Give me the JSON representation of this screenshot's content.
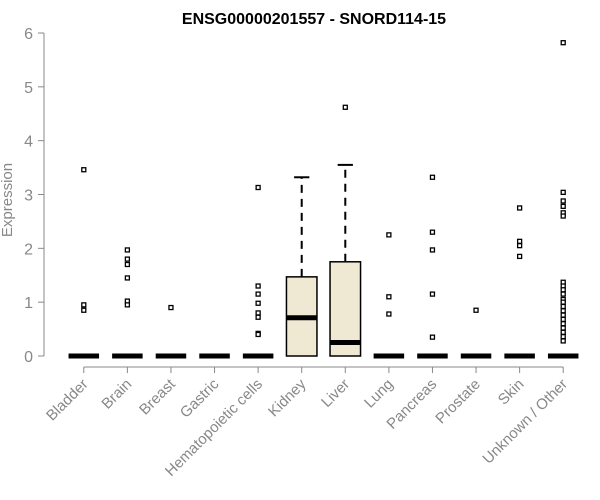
{
  "chart_data": {
    "type": "boxplot",
    "title": "ENSG00000201557 - SNORD114-15",
    "ylabel": "Expression",
    "xlabel": "",
    "ylim": [
      0,
      6
    ],
    "yticks": [
      0,
      1,
      2,
      3,
      4,
      5,
      6
    ],
    "grid": false,
    "colors": {
      "box_fill": "#efe8d2",
      "stroke": "#000000",
      "axis_text": "#888888"
    },
    "categories": [
      "Bladder",
      "Brain",
      "Breast",
      "Gastric",
      "Hematopoietic cells",
      "Kidney",
      "Liver",
      "Lung",
      "Pancreas",
      "Prostate",
      "Skin",
      "Unknown / Other"
    ],
    "boxes": [
      {
        "category": "Bladder",
        "q1": 0,
        "median": 0,
        "q3": 0,
        "whisker_low": 0,
        "whisker_high": 0,
        "outliers": [
          3.46,
          0.95,
          0.85
        ]
      },
      {
        "category": "Brain",
        "q1": 0,
        "median": 0,
        "q3": 0,
        "whisker_low": 0,
        "whisker_high": 0,
        "outliers": [
          1.97,
          1.8,
          1.7,
          1.45,
          1.02,
          0.95
        ]
      },
      {
        "category": "Breast",
        "q1": 0,
        "median": 0,
        "q3": 0,
        "whisker_low": 0,
        "whisker_high": 0,
        "outliers": [
          0.9
        ]
      },
      {
        "category": "Gastric",
        "q1": 0,
        "median": 0,
        "q3": 0,
        "whisker_low": 0,
        "whisker_high": 0,
        "outliers": []
      },
      {
        "category": "Hematopoietic cells",
        "q1": 0,
        "median": 0,
        "q3": 0,
        "whisker_low": 0,
        "whisker_high": 0,
        "outliers": [
          3.13,
          1.3,
          1.15,
          0.98,
          0.8,
          0.72,
          0.42,
          0.4
        ]
      },
      {
        "category": "Kidney",
        "q1": 0,
        "median": 0.71,
        "q3": 1.47,
        "whisker_low": 0,
        "whisker_high": 3.32,
        "outliers": []
      },
      {
        "category": "Liver",
        "q1": 0,
        "median": 0.25,
        "q3": 1.75,
        "whisker_low": 0,
        "whisker_high": 3.55,
        "outliers": [
          4.62
        ]
      },
      {
        "category": "Lung",
        "q1": 0,
        "median": 0,
        "q3": 0,
        "whisker_low": 0,
        "whisker_high": 0,
        "outliers": [
          2.25,
          1.1,
          0.78
        ]
      },
      {
        "category": "Pancreas",
        "q1": 0,
        "median": 0,
        "q3": 0,
        "whisker_low": 0,
        "whisker_high": 0,
        "outliers": [
          3.32,
          2.3,
          1.97,
          1.15,
          0.35
        ]
      },
      {
        "category": "Prostate",
        "q1": 0,
        "median": 0,
        "q3": 0,
        "whisker_low": 0,
        "whisker_high": 0,
        "outliers": [
          0.85
        ]
      },
      {
        "category": "Skin",
        "q1": 0,
        "median": 0,
        "q3": 0,
        "whisker_low": 0,
        "whisker_high": 0,
        "outliers": [
          2.75,
          2.13,
          2.05,
          1.85
        ]
      },
      {
        "category": "Unknown / Other",
        "q1": 0,
        "median": 0,
        "q3": 0,
        "whisker_low": 0,
        "whisker_high": 0,
        "outliers": [
          5.82,
          3.04,
          2.88,
          2.78,
          2.66,
          2.6,
          1.37,
          1.3,
          1.23,
          1.15,
          1.05,
          1.0,
          0.92,
          0.84,
          0.76,
          0.68,
          0.6,
          0.52,
          0.44,
          0.36,
          0.28
        ]
      }
    ]
  }
}
